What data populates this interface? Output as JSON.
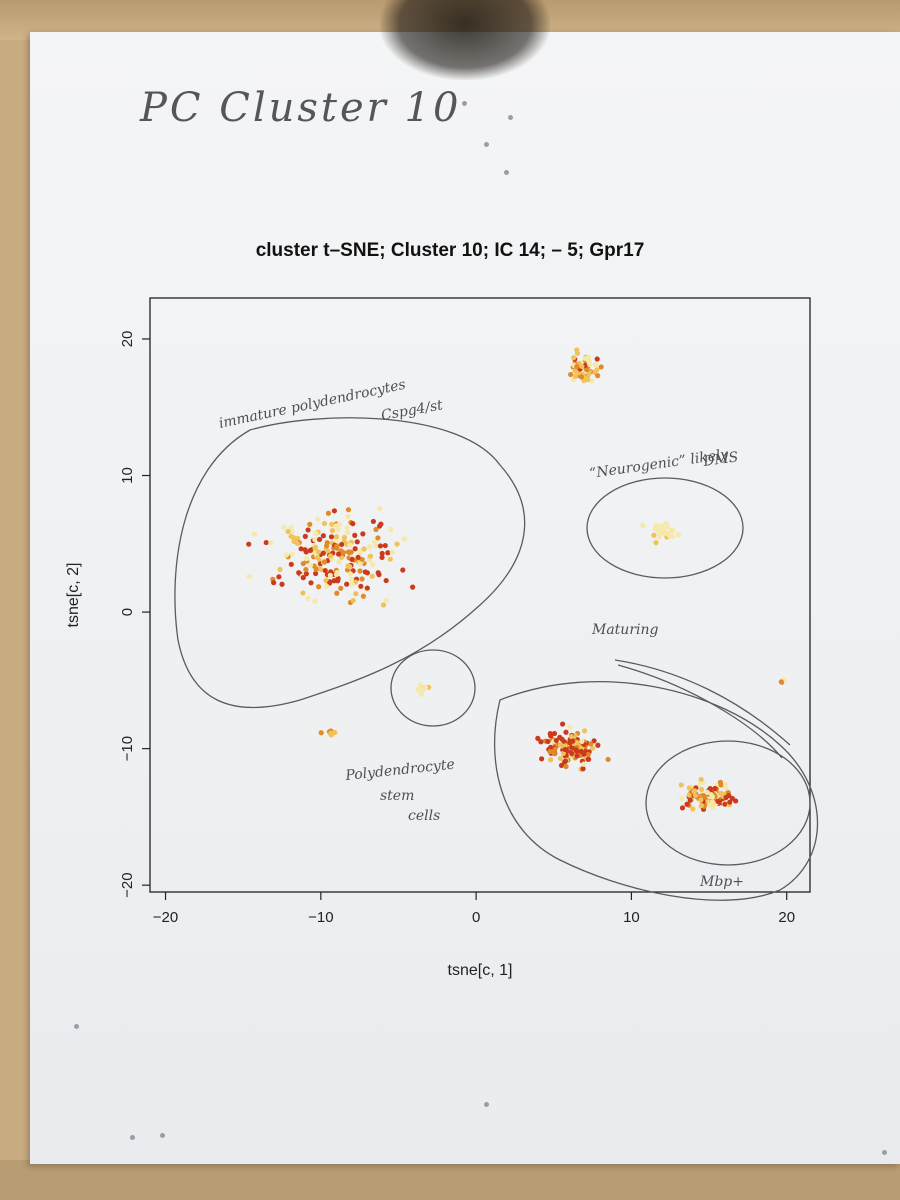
{
  "heading": "PC Cluster 10",
  "chart_data": {
    "type": "scatter",
    "title": "cluster t–SNE; Cluster 10; IC 14; – 5; Gpr17",
    "xlabel": "tsne[c, 1]",
    "ylabel": "tsne[c, 2]",
    "xlim": [
      -21,
      21.5
    ],
    "ylim": [
      -20.5,
      23
    ],
    "xticks": [
      -20,
      -10,
      0,
      10,
      20
    ],
    "xtick_labels": [
      "−20",
      "−10",
      "0",
      "10",
      "20"
    ],
    "yticks": [
      -20,
      -10,
      0,
      10,
      20
    ],
    "ytick_labels": [
      "−20",
      "−10",
      "0",
      "10",
      "20"
    ],
    "grid": false,
    "legend": "none",
    "color_scale": [
      "#f5e8a8",
      "#efc35a",
      "#e08a2c",
      "#cc3a1e"
    ],
    "clusters": [
      {
        "center": [
          -9,
          4
        ],
        "spread": [
          7,
          6
        ],
        "count": 220,
        "levels": [
          0.25,
          0.2,
          0.25,
          0.3
        ]
      },
      {
        "center": [
          7,
          18
        ],
        "spread": [
          1.6,
          1.8
        ],
        "count": 55,
        "levels": [
          0.3,
          0.3,
          0.25,
          0.15
        ]
      },
      {
        "center": [
          12,
          6
        ],
        "spread": [
          1.8,
          1.5
        ],
        "count": 25,
        "levels": [
          0.85,
          0.15,
          0,
          0
        ]
      },
      {
        "center": [
          6,
          -10
        ],
        "spread": [
          3.2,
          2.5
        ],
        "count": 120,
        "levels": [
          0.1,
          0.15,
          0.25,
          0.5
        ]
      },
      {
        "center": [
          15,
          -13.5
        ],
        "spread": [
          3,
          2
        ],
        "count": 110,
        "levels": [
          0.25,
          0.25,
          0.25,
          0.25
        ]
      },
      {
        "center": [
          -3.5,
          -5.5
        ],
        "spread": [
          0.8,
          1
        ],
        "count": 8,
        "levels": [
          0.6,
          0.4,
          0,
          0
        ]
      },
      {
        "center": [
          -9.5,
          -8.8
        ],
        "spread": [
          0.7,
          0.4
        ],
        "count": 8,
        "levels": [
          0.2,
          0.3,
          0.5,
          0
        ]
      },
      {
        "center": [
          19.8,
          -5
        ],
        "spread": [
          0.3,
          0.3
        ],
        "count": 5,
        "levels": [
          0.3,
          0.3,
          0.2,
          0.2
        ]
      }
    ]
  },
  "annotations": {
    "immature": "immature polydendrocytes",
    "cspg": "Cspg4/st",
    "neurogenic_line1": "“Neurogenic” likely",
    "neurogenic_line2": "DMS",
    "maturing": "Maturing",
    "stem_line1": "Polydendrocyte",
    "stem_line2": "stem",
    "stem_line3": "cells",
    "mbp": "Mbp+"
  }
}
